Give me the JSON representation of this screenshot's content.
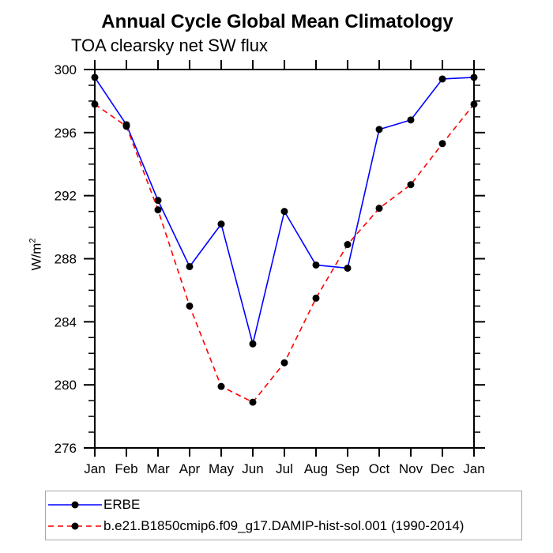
{
  "chart_data": {
    "type": "line",
    "title": "Annual Cycle Global Mean Climatology",
    "subtitle": "TOA clearsky net SW flux",
    "ylabel": "W/m2",
    "ylabel_parts": {
      "base": "W/m",
      "exp": "2"
    },
    "xlabel": "",
    "x_categories": [
      "Jan",
      "Feb",
      "Mar",
      "Apr",
      "May",
      "Jun",
      "Jul",
      "Aug",
      "Sep",
      "Oct",
      "Nov",
      "Dec",
      "Jan"
    ],
    "series": [
      {
        "name": "ERBE",
        "color": "#0000ff",
        "line_style": "solid",
        "marker": "filled-black-circle",
        "values": [
          299.5,
          296.5,
          291.7,
          287.5,
          290.2,
          282.6,
          291.0,
          287.6,
          287.4,
          296.2,
          296.8,
          299.4,
          299.5
        ]
      },
      {
        "name": "b.e21.B1850cmip6.f09_g17.DAMIP-hist-sol.001 (1990-2014)",
        "color": "#ff0000",
        "line_style": "dashed",
        "marker": "filled-black-circle",
        "values": [
          297.8,
          296.4,
          291.1,
          285.0,
          279.9,
          278.9,
          281.4,
          285.5,
          288.9,
          291.2,
          292.7,
          295.3,
          297.8
        ]
      }
    ],
    "ylim": [
      276,
      300
    ],
    "yticks_major": [
      276,
      280,
      284,
      288,
      292,
      296,
      300
    ],
    "ytick_minor_step": 1,
    "grid": false,
    "legend_position": "bottom",
    "axis_color": "#000000",
    "marker_color": "#000000"
  }
}
